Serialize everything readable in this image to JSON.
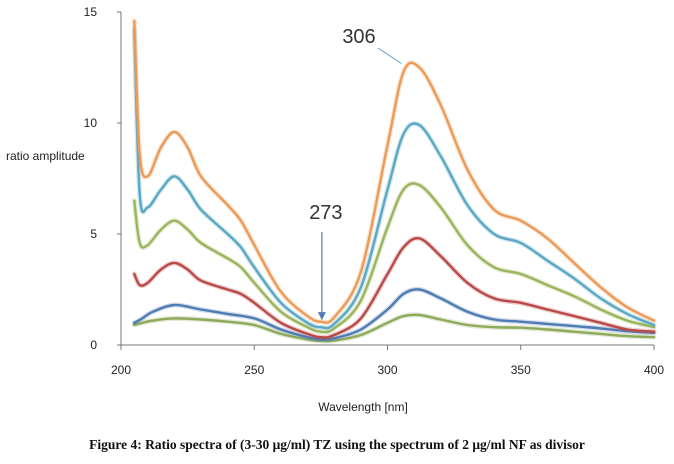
{
  "chart_data": {
    "type": "line",
    "title": "",
    "xlabel": "Wavelength [nm]",
    "ylabel": "ratio amplitude",
    "xlim": [
      200,
      400
    ],
    "ylim": [
      0,
      15
    ],
    "x_ticks": [
      "200",
      "250",
      "300",
      "350",
      "400"
    ],
    "y_ticks": [
      "0",
      "5",
      "10",
      "15"
    ],
    "grid": false,
    "legend": "none",
    "series": [
      {
        "color": "#8faa5a",
        "x": [
          205,
          208,
          212,
          220,
          230,
          240,
          250,
          260,
          270,
          275,
          280,
          290,
          300,
          306,
          312,
          320,
          330,
          340,
          350,
          360,
          370,
          380,
          390,
          400
        ],
        "y": [
          0.9,
          1.0,
          1.1,
          1.2,
          1.15,
          1.05,
          0.9,
          0.5,
          0.25,
          0.18,
          0.2,
          0.45,
          1.0,
          1.3,
          1.35,
          1.15,
          0.9,
          0.8,
          0.78,
          0.7,
          0.6,
          0.5,
          0.4,
          0.35
        ]
      },
      {
        "color": "#4f7cb3",
        "x": [
          205,
          208,
          212,
          220,
          230,
          240,
          250,
          260,
          270,
          275,
          280,
          290,
          300,
          306,
          312,
          320,
          330,
          340,
          350,
          360,
          370,
          380,
          390,
          400
        ],
        "y": [
          1.0,
          1.2,
          1.5,
          1.8,
          1.6,
          1.4,
          1.2,
          0.7,
          0.35,
          0.25,
          0.3,
          0.7,
          1.6,
          2.3,
          2.5,
          2.1,
          1.5,
          1.15,
          1.05,
          0.95,
          0.85,
          0.75,
          0.62,
          0.55
        ]
      },
      {
        "color": "#b94a48",
        "x": [
          205,
          207,
          210,
          215,
          220,
          225,
          230,
          240,
          245,
          250,
          260,
          270,
          275,
          280,
          290,
          300,
          306,
          312,
          320,
          330,
          340,
          350,
          360,
          370,
          380,
          390,
          400
        ],
        "y": [
          3.2,
          2.7,
          2.8,
          3.4,
          3.7,
          3.4,
          2.9,
          2.5,
          2.3,
          1.9,
          1.0,
          0.5,
          0.35,
          0.45,
          1.2,
          3.2,
          4.4,
          4.8,
          4.0,
          2.8,
          2.1,
          1.9,
          1.6,
          1.3,
          1.0,
          0.7,
          0.6
        ]
      },
      {
        "color": "#9bb55c",
        "x": [
          205,
          207,
          210,
          215,
          220,
          225,
          230,
          240,
          245,
          250,
          260,
          270,
          275,
          280,
          290,
          300,
          306,
          312,
          320,
          330,
          340,
          350,
          360,
          370,
          380,
          390,
          400
        ],
        "y": [
          6.5,
          4.6,
          4.5,
          5.2,
          5.6,
          5.2,
          4.6,
          3.9,
          3.5,
          2.8,
          1.5,
          0.8,
          0.6,
          0.75,
          2.0,
          5.3,
          7.0,
          7.2,
          6.2,
          4.5,
          3.5,
          3.2,
          2.7,
          2.2,
          1.6,
          1.1,
          0.8
        ]
      },
      {
        "color": "#5aa8c4",
        "x": [
          205,
          207,
          210,
          215,
          220,
          225,
          230,
          240,
          245,
          250,
          260,
          270,
          275,
          280,
          290,
          300,
          306,
          312,
          320,
          330,
          340,
          350,
          360,
          370,
          380,
          390,
          400
        ],
        "y": [
          14.2,
          6.8,
          6.2,
          7.0,
          7.6,
          7.0,
          6.1,
          5.0,
          4.4,
          3.5,
          1.9,
          1.0,
          0.8,
          0.95,
          2.6,
          7.0,
          9.5,
          9.9,
          8.5,
          6.3,
          5.0,
          4.6,
          3.8,
          3.0,
          2.1,
          1.4,
          0.9
        ]
      },
      {
        "color": "#ec9a58",
        "x": [
          205,
          207,
          210,
          215,
          220,
          225,
          230,
          240,
          245,
          250,
          260,
          270,
          275,
          280,
          290,
          300,
          306,
          312,
          320,
          330,
          340,
          350,
          360,
          370,
          380,
          390,
          400
        ],
        "y": [
          14.6,
          8.6,
          7.6,
          8.9,
          9.6,
          8.9,
          7.6,
          6.3,
          5.6,
          4.5,
          2.4,
          1.3,
          1.05,
          1.25,
          3.3,
          9.0,
          12.3,
          12.5,
          10.8,
          7.9,
          6.1,
          5.6,
          4.8,
          3.7,
          2.6,
          1.7,
          1.1
        ]
      }
    ],
    "annotations": [
      {
        "text": "306",
        "x": 306,
        "y": 12.5,
        "kind": "label-with-leader"
      },
      {
        "text": "273",
        "x": 275,
        "y": 1.3,
        "kind": "arrow-down"
      }
    ]
  },
  "caption": "Figure 4: Ratio spectra of (3-30 μg/ml) TZ using the spectrum of 2 μg/ml NF as divisor"
}
